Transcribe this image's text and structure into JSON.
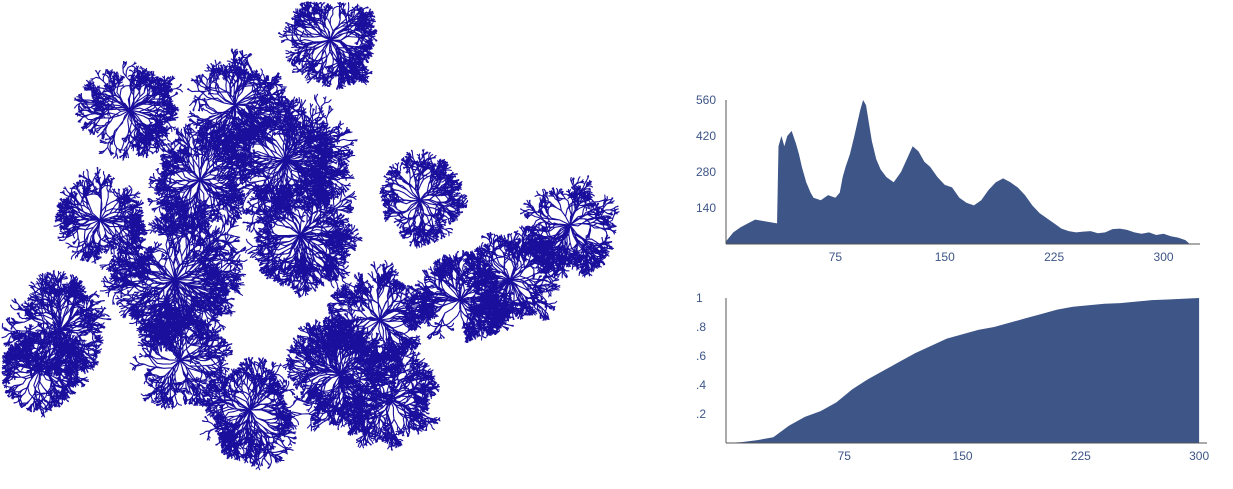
{
  "tree_color": "#1a0f9c",
  "chart_color": "#3d5587",
  "axis_color": "#555555",
  "chart_data": [
    {
      "type": "area",
      "x": [
        0,
        5,
        10,
        15,
        20,
        25,
        30,
        35,
        36,
        38,
        40,
        42,
        45,
        48,
        50,
        52,
        55,
        58,
        60,
        65,
        70,
        75,
        78,
        80,
        82,
        85,
        88,
        90,
        92,
        94,
        96,
        98,
        100,
        103,
        106,
        110,
        115,
        120,
        124,
        128,
        132,
        136,
        140,
        145,
        150,
        155,
        160,
        165,
        170,
        175,
        180,
        185,
        190,
        195,
        200,
        205,
        210,
        215,
        220,
        225,
        230,
        235,
        240,
        245,
        250,
        255,
        260,
        265,
        270,
        275,
        280,
        285,
        290,
        295,
        300,
        305,
        310,
        315,
        318
      ],
      "values": [
        10,
        45,
        65,
        80,
        95,
        90,
        85,
        80,
        380,
        420,
        380,
        420,
        440,
        390,
        350,
        300,
        240,
        200,
        180,
        170,
        190,
        180,
        200,
        260,
        300,
        350,
        420,
        470,
        520,
        560,
        540,
        470,
        400,
        330,
        290,
        260,
        240,
        280,
        330,
        380,
        360,
        320,
        300,
        260,
        230,
        220,
        180,
        160,
        150,
        170,
        210,
        240,
        255,
        240,
        220,
        190,
        150,
        120,
        100,
        80,
        60,
        50,
        45,
        48,
        50,
        42,
        45,
        58,
        60,
        55,
        45,
        40,
        45,
        35,
        40,
        30,
        25,
        15,
        0
      ],
      "xticks": [
        75,
        150,
        225,
        300
      ],
      "yticks": [
        140,
        280,
        420,
        560
      ],
      "ytick_labels": [
        "140",
        "280",
        "420",
        "560"
      ],
      "xlim": [
        0,
        325
      ],
      "ylim": [
        0,
        560
      ]
    },
    {
      "type": "area",
      "x": [
        0,
        10,
        20,
        30,
        40,
        50,
        60,
        70,
        80,
        90,
        100,
        110,
        120,
        130,
        140,
        150,
        160,
        170,
        180,
        190,
        200,
        210,
        220,
        230,
        240,
        250,
        260,
        270,
        280,
        290,
        300
      ],
      "values": [
        0,
        0.006,
        0.02,
        0.04,
        0.12,
        0.18,
        0.22,
        0.28,
        0.37,
        0.44,
        0.5,
        0.56,
        0.62,
        0.67,
        0.72,
        0.75,
        0.78,
        0.8,
        0.83,
        0.86,
        0.89,
        0.92,
        0.94,
        0.95,
        0.96,
        0.965,
        0.975,
        0.985,
        0.99,
        0.995,
        1.0
      ],
      "xticks": [
        75,
        150,
        225,
        300
      ],
      "yticks": [
        0.2,
        0.4,
        0.6,
        0.8,
        1
      ],
      "ytick_labels": [
        ".2",
        ".4",
        ".6",
        ".8",
        "1"
      ],
      "xlim": [
        0,
        305
      ],
      "ylim": [
        0,
        1
      ]
    }
  ]
}
